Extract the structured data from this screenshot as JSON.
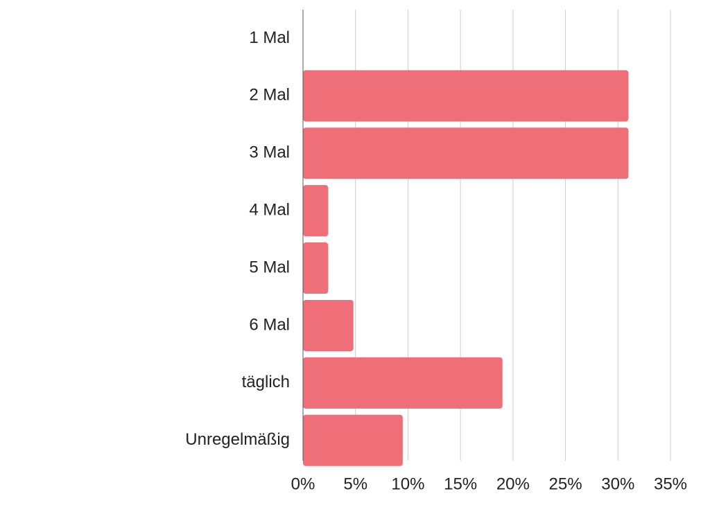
{
  "chart_data": {
    "type": "bar",
    "orientation": "horizontal",
    "categories": [
      "1 Mal",
      "2 Mal",
      "3 Mal",
      "4 Mal",
      "5 Mal",
      "6 Mal",
      "täglich",
      "Unregelmäßig"
    ],
    "values": [
      0,
      31,
      31,
      2.4,
      2.4,
      4.8,
      19,
      9.5
    ],
    "xlim": [
      0,
      35
    ],
    "x_ticks": [
      0,
      5,
      10,
      15,
      20,
      25,
      30,
      35
    ],
    "x_tick_labels": [
      "0%",
      "5%",
      "10%",
      "15%",
      "20%",
      "25%",
      "30%",
      "35%"
    ],
    "grid": "vertical",
    "legend": "none",
    "title": "",
    "xlabel": "",
    "ylabel": "",
    "colors": {
      "bar": "#ee6f78",
      "grid": "#cccccc",
      "axis": "#555555",
      "text": "#222222"
    }
  }
}
